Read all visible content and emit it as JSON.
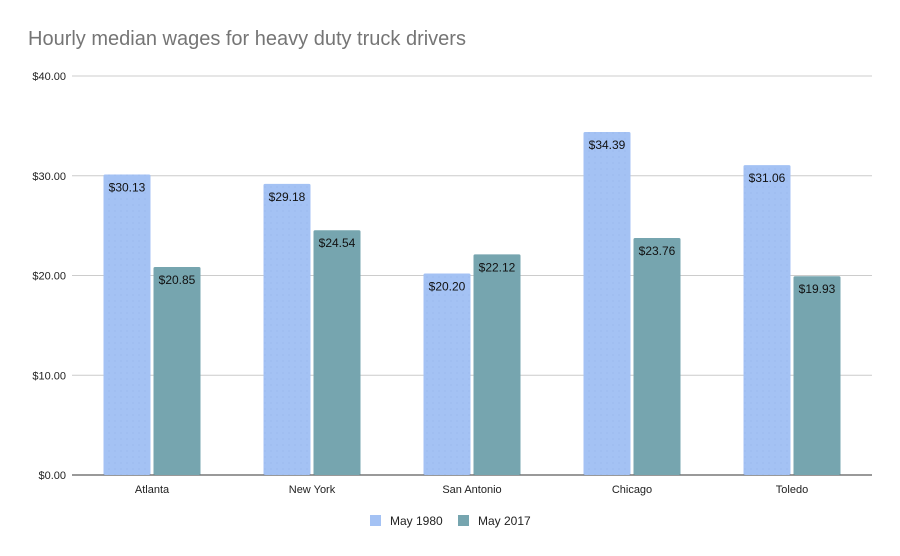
{
  "chart_data": {
    "type": "bar",
    "title": "Hourly median wages for heavy duty truck drivers",
    "xlabel": "",
    "ylabel": "",
    "categories": [
      "Atlanta",
      "New York",
      "San Antonio",
      "Chicago",
      "Toledo"
    ],
    "series": [
      {
        "name": "May 1980",
        "color": "#a4c2f4",
        "values": [
          30.13,
          29.18,
          20.2,
          34.39,
          31.06
        ],
        "labels": [
          "$30.13",
          "$29.18",
          "$20.20",
          "$34.39",
          "$31.06"
        ]
      },
      {
        "name": "May 2017",
        "color": "#76a5af",
        "values": [
          20.85,
          24.54,
          22.12,
          23.76,
          19.93
        ],
        "labels": [
          "$20.85",
          "$24.54",
          "$22.12",
          "$23.76",
          "$19.93"
        ]
      }
    ],
    "ylim": [
      0,
      40
    ],
    "yticks": [
      0,
      10,
      20,
      30,
      40
    ],
    "ytick_labels": [
      "$0.00",
      "$10.00",
      "$20.00",
      "$30.00",
      "$40.00"
    ],
    "grid": true,
    "legend": "bottom"
  }
}
